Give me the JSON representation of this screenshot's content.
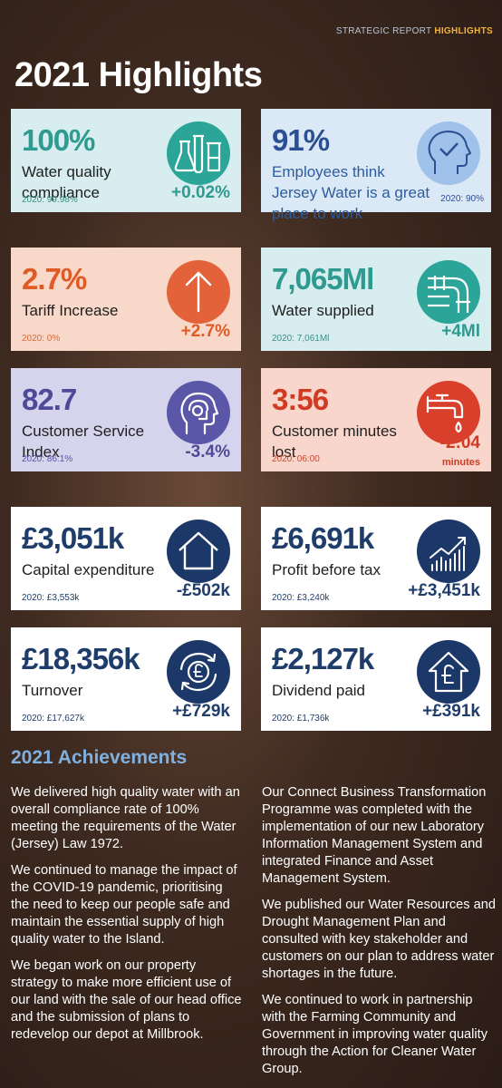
{
  "header": {
    "section": "STRATEGIC REPORT",
    "highlight": "HIGHLIGHTS"
  },
  "title": "2021 Highlights",
  "cards": {
    "water_quality": {
      "value": "100%",
      "label": "Water quality compliance",
      "previous": "2020: 99.98%",
      "change": "+0.02%",
      "icon": "lab-flasks-icon"
    },
    "employees": {
      "value": "91%",
      "label": "Employees think Jersey Water is a great place to work",
      "previous": "2020: 90%",
      "icon": "checkmark-head-icon"
    },
    "tariff": {
      "value": "2.7%",
      "label": "Tariff Increase",
      "previous": "2020: 0%",
      "change": "+2.7%",
      "icon": "up-arrow-icon"
    },
    "water_supplied": {
      "value": "7,065Ml",
      "label": "Water supplied",
      "previous": "2020: 7,061Ml",
      "change": "+4Ml",
      "icon": "pipes-icon"
    },
    "customer_service": {
      "value": "82.7",
      "label": "Customer Service Index",
      "previous": "2020: 86.1%",
      "change": "-3.4%",
      "icon": "headset-agent-icon"
    },
    "minutes_lost": {
      "value": "3:56",
      "label": "Customer minutes lost",
      "previous": "2020: 06:00",
      "change": "-2:04",
      "unit": "minutes",
      "icon": "dripping-tap-icon"
    },
    "capex": {
      "value": "£3,051k",
      "label": "Capital expenditure",
      "previous": "2020: £3,553k",
      "change": "-£502k",
      "icon": "house-icon"
    },
    "profit": {
      "value": "£6,691k",
      "label": "Profit before tax",
      "previous": "2020: £3,240k",
      "change": "+£3,451k",
      "icon": "growth-chart-icon"
    },
    "turnover": {
      "value": "£18,356k",
      "label": "Turnover",
      "previous": "2020: £17,627k",
      "change": "+£729k",
      "icon": "pound-cycle-icon"
    },
    "dividend": {
      "value": "£2,127k",
      "label": "Dividend paid",
      "previous": "2020: £1,736k",
      "change": "+£391k",
      "icon": "pound-house-icon"
    }
  },
  "achievements": {
    "title": "2021 Achievements",
    "left": [
      "We delivered high quality water with an overall compliance rate of 100% meeting the requirements of the Water (Jersey) Law 1972.",
      "We continued to manage the impact of the COVID-19 pandemic, prioritising the need to keep our people safe and maintain the essential supply of high quality water to the Island.",
      "We began work on our property strategy to make more efficient use of our land with the sale of our head office and the submission of plans to redevelop our depot at Millbrook."
    ],
    "right": [
      "Our Connect Business Transformation Programme was completed with the implementation of our new Laboratory Information Management System and integrated Finance and Asset Management System.",
      "We published our Water Resources and Drought Management Plan and consulted with key stakeholder and customers on our plan to address water shortages in the future.",
      "We continued to work in partnership with the Farming Community and Government in improving water quality through the Action for Cleaner Water Group."
    ]
  }
}
